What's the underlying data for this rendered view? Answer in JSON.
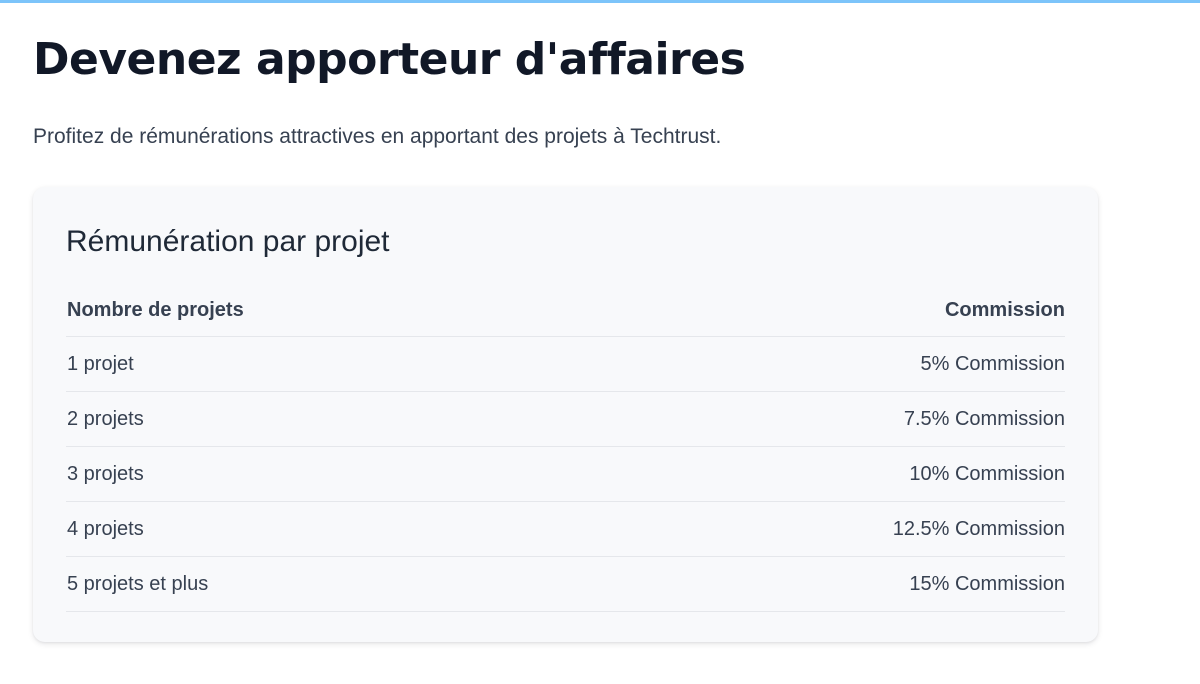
{
  "page": {
    "title": "Devenez apporteur d'affaires",
    "subtitle": "Profitez de rémunérations attractives en apportant des projets à Techtrust."
  },
  "card": {
    "title": "Rémunération par projet",
    "table": {
      "headers": {
        "projects": "Nombre de projets",
        "commission": "Commission"
      },
      "rows": [
        {
          "projects": "1 projet",
          "commission": "5% Commission"
        },
        {
          "projects": "2 projets",
          "commission": "7.5% Commission"
        },
        {
          "projects": "3 projets",
          "commission": "10% Commission"
        },
        {
          "projects": "4 projets",
          "commission": "12.5% Commission"
        },
        {
          "projects": "5 projets et plus",
          "commission": "15% Commission"
        }
      ]
    }
  },
  "colors": {
    "accent_bar": "#7cc4fa",
    "card_background": "#f8f9fb",
    "title_text": "#111827"
  }
}
